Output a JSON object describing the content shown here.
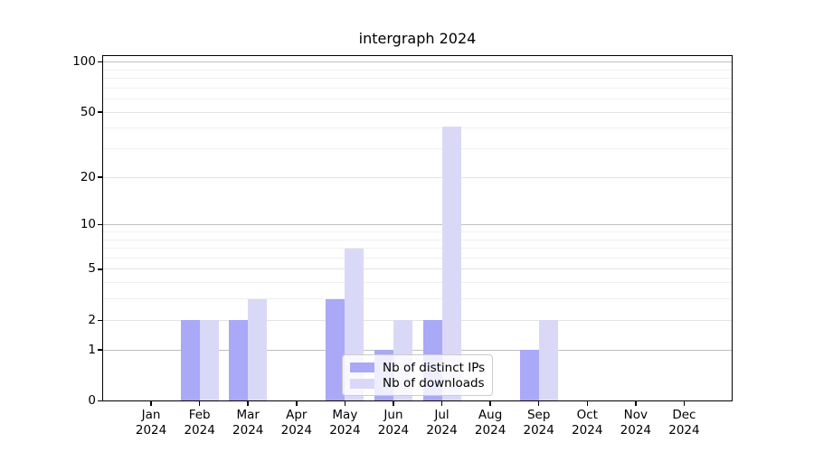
{
  "chart_data": {
    "type": "bar",
    "title": "intergraph 2024",
    "year": "2024",
    "categories": [
      "Jan",
      "Feb",
      "Mar",
      "Apr",
      "May",
      "Jun",
      "Jul",
      "Aug",
      "Sep",
      "Oct",
      "Nov",
      "Dec"
    ],
    "series": [
      {
        "name": "Nb of distinct IPs",
        "color": "#a9a9f7",
        "values": [
          0,
          2,
          2,
          0,
          3,
          1,
          2,
          0,
          1,
          0,
          0,
          0
        ]
      },
      {
        "name": "Nb of downloads",
        "color": "#d9d9f7",
        "values": [
          0,
          2,
          3,
          0,
          7,
          2,
          41,
          0,
          2,
          0,
          0,
          0
        ]
      }
    ],
    "yscale": "log10(value+1)",
    "ylim": [
      0,
      110
    ],
    "y_major_ticks": [
      0,
      1,
      2,
      5,
      10,
      20,
      50,
      100
    ],
    "y_major_tick_labels": [
      "0",
      "1",
      "2",
      "5",
      "10",
      "20",
      "50",
      "100"
    ],
    "y_emphasized_gridlines": [
      1,
      10,
      100
    ],
    "y_minor_ticks": [
      3,
      4,
      6,
      7,
      8,
      9,
      30,
      40,
      60,
      70,
      80,
      90
    ],
    "grid": true,
    "legend_position": "lower center",
    "background_color": "#ffffff",
    "axis_color": "#000000"
  }
}
